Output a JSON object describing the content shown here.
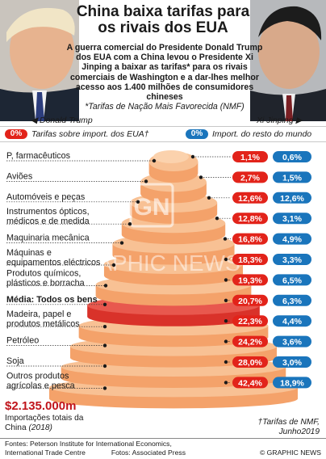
{
  "header": {
    "title": "China baixa tarifas para os rivais dos EUA",
    "lede": "A guerra comercial do Presidente Donald Trump dos EUA com a China levou o Presidente Xi Jinping a baixar as tarifas* para os rivais comerciais de Washington e a dar-lhes melhor acesso aos 1.400 milhões de consumidores chineses",
    "lede_note": "*Tarifas de Nação Mais Favorecida (NMF)"
  },
  "photos": {
    "left_caption": "Donald Trump",
    "right_caption": "Xi Jinping"
  },
  "legend": {
    "us": {
      "badge": "0%",
      "label": "Tarifas sobre import. dos EUA†",
      "color": "#e2231a"
    },
    "world": {
      "badge": "0%",
      "label": "Import. do resto do mundo",
      "color": "#1a75bc"
    }
  },
  "chart_data": {
    "type": "bar",
    "categories": [
      "P, farmacêuticos",
      "Aviões",
      "Automóveis e peças",
      "Instrumentos ópticos, médicos e de medida",
      "Maquinaria mecânica",
      "Máquinas e equipamentos eléctricos",
      "Produtos químicos, plásticos e borracha",
      "Média: Todos os bens",
      "Madeira, papel e produtos metálicos",
      "Petróleo",
      "Soja",
      "Outros produtos agrícolas e pesca"
    ],
    "series": [
      {
        "name": "Tarifas sobre import. dos EUA†",
        "values": [
          1.1,
          2.7,
          12.6,
          12.8,
          16.8,
          18.3,
          19.3,
          20.7,
          22.3,
          24.2,
          28.0,
          42.4
        ],
        "labels": [
          "1,1%",
          "2,7%",
          "12,6%",
          "12,8%",
          "16,8%",
          "18,3%",
          "19,3%",
          "20,7%",
          "22,3%",
          "24,2%",
          "28,0%",
          "42,4%"
        ]
      },
      {
        "name": "Import. do resto do mundo",
        "values": [
          0.6,
          1.5,
          12.6,
          3.1,
          4.9,
          3.3,
          6.5,
          6.3,
          4.4,
          3.6,
          3.0,
          18.9
        ],
        "labels": [
          "0,6%",
          "1,5%",
          "12,6%",
          "3,1%",
          "4,9%",
          "3,3%",
          "6,5%",
          "6,3%",
          "4,4%",
          "3,6%",
          "3,0%",
          "18,9%"
        ]
      }
    ],
    "highlight_category": "Média: Todos os bens",
    "colors": {
      "us": "#e2231a",
      "world": "#1a75bc",
      "tier": "#f4a26a",
      "tier_top": "#f8c194",
      "highlight": "#d9322a"
    }
  },
  "total": {
    "value": "$2.135.000m",
    "label": "Importações totais da China",
    "year": "(2018)"
  },
  "footnote": {
    "line1": "†Tarifas de NMF,",
    "line2": "Junho2019"
  },
  "sources": {
    "line1": "Fontes:  Peterson Institute for International Economics,",
    "line2": "International Trade Centre",
    "line2b": "Fotos: Associated Press"
  },
  "credit": "© GRAPHIC NEWS",
  "watermark": {
    "logo": "GN",
    "text": "GRAPHIC NEWS"
  }
}
